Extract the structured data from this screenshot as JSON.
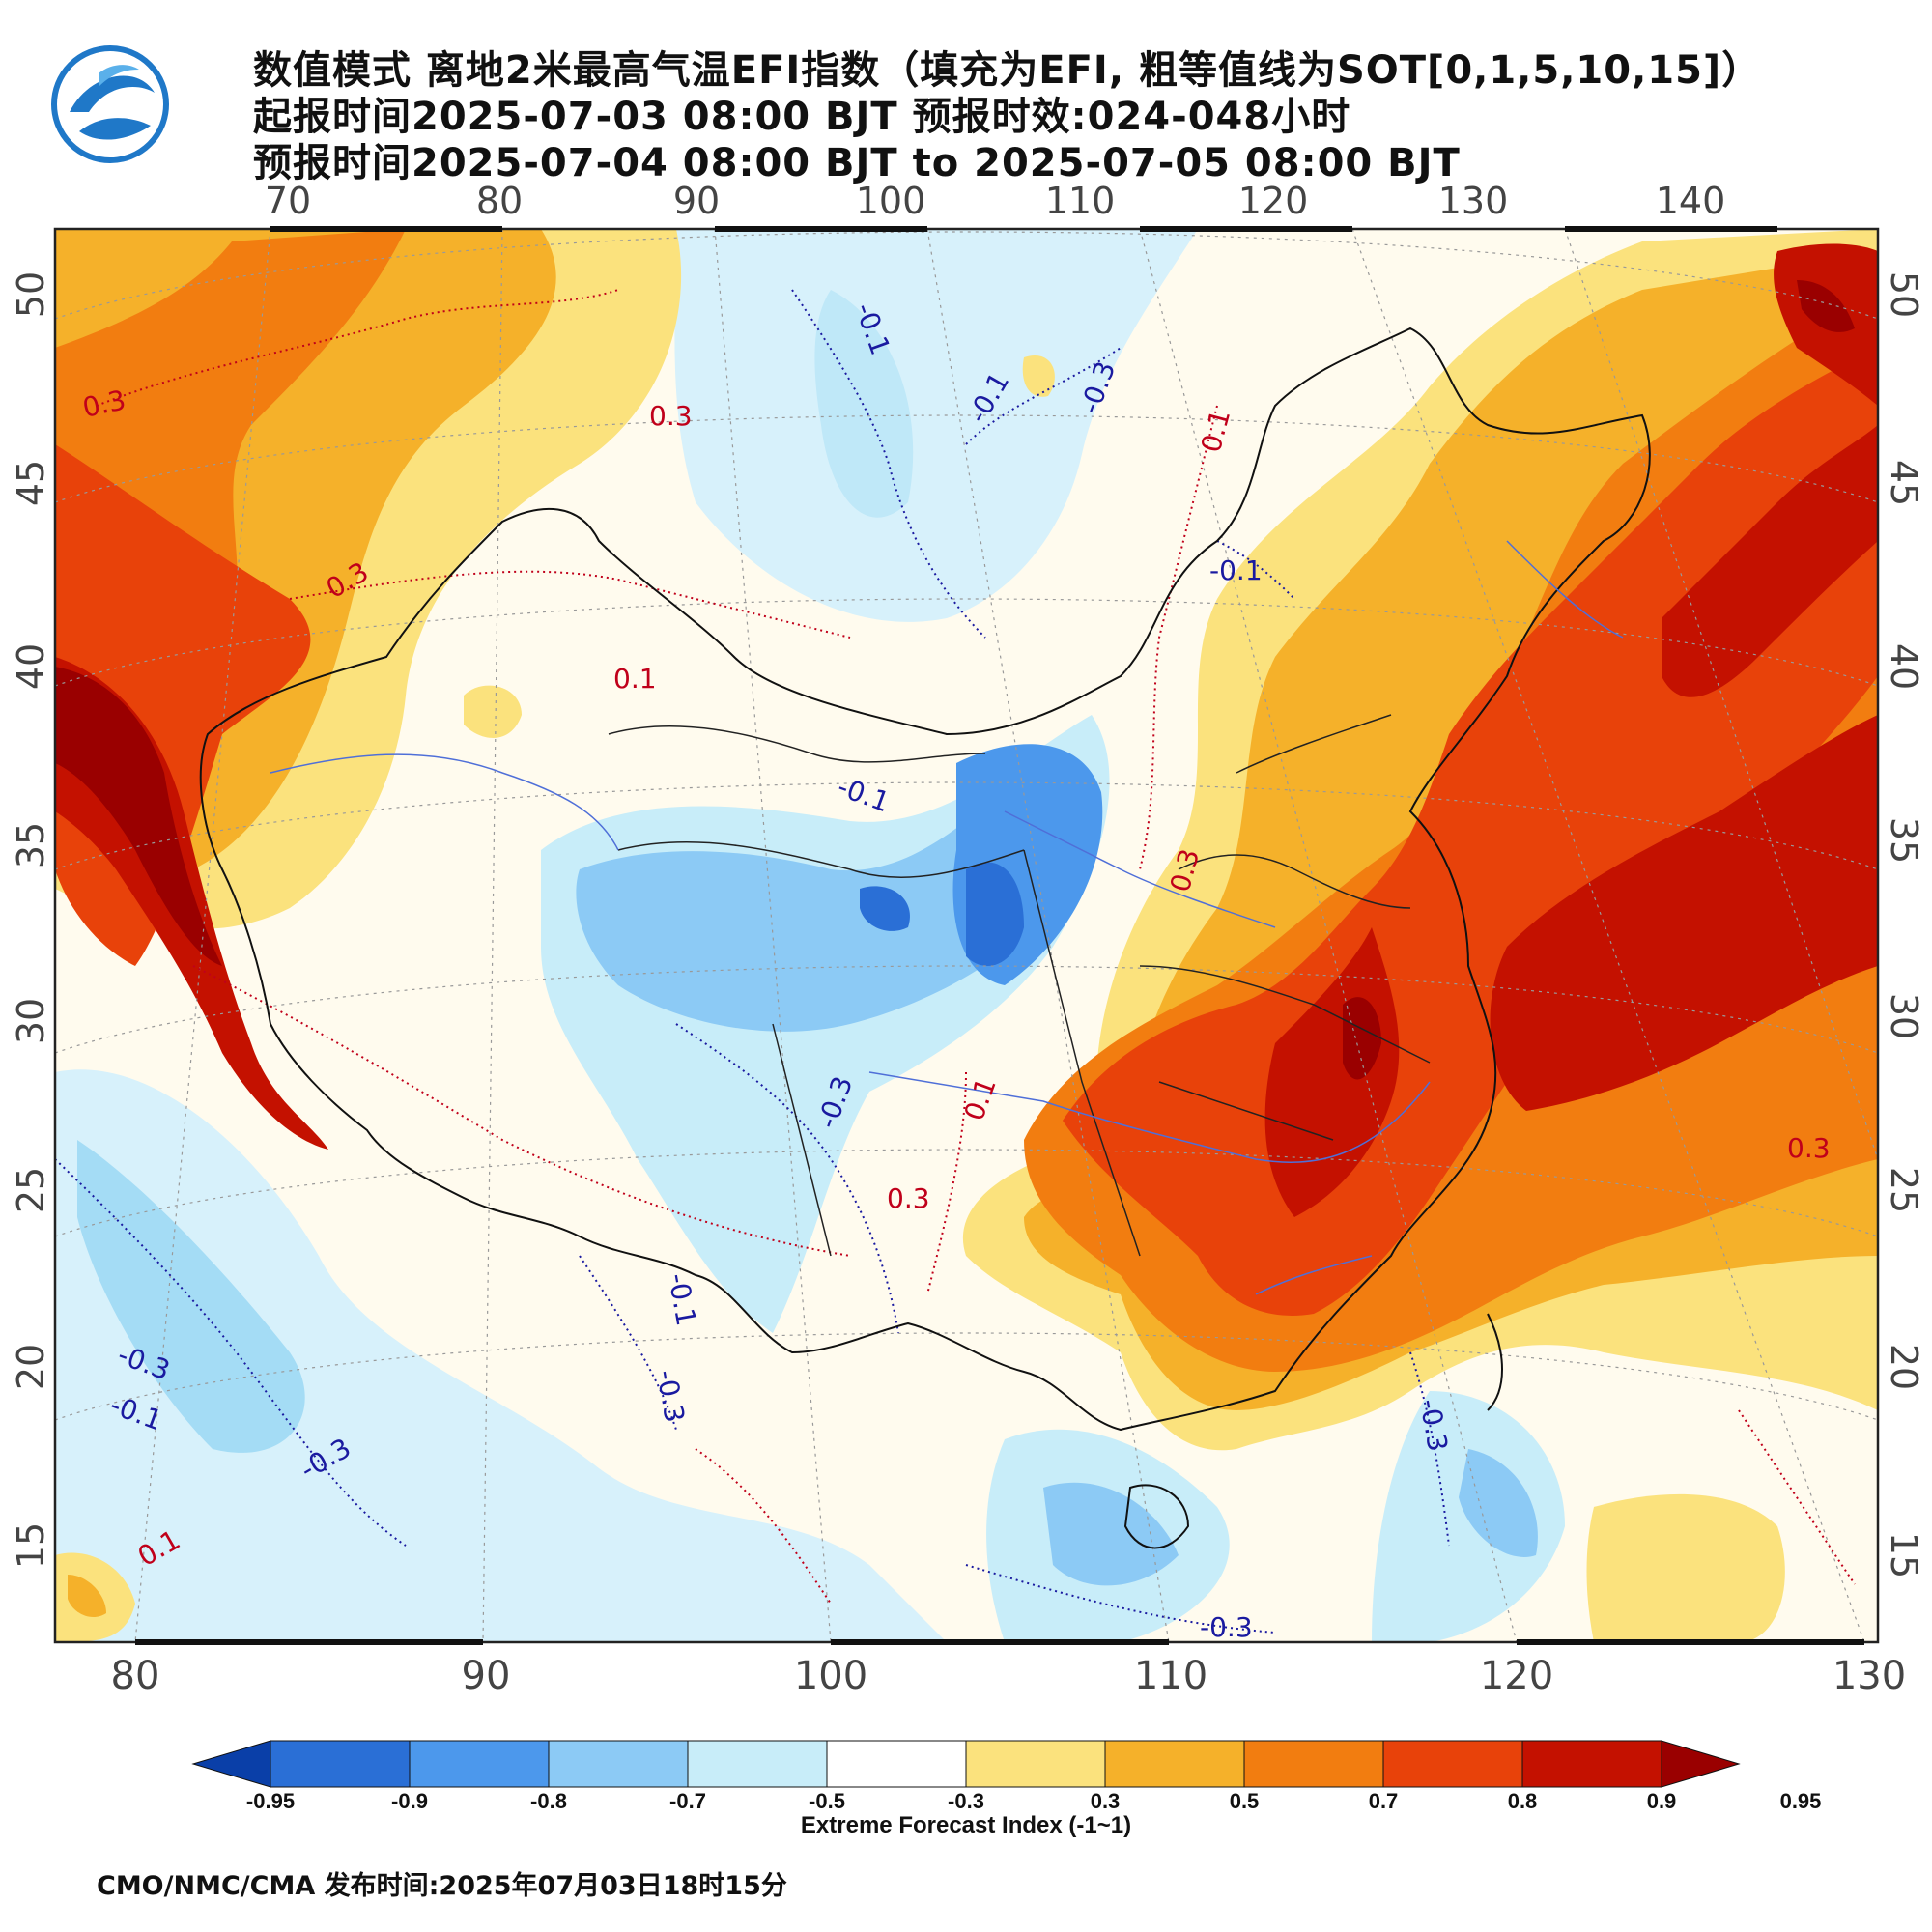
{
  "header": {
    "line1": "数值模式 离地2米最高气温EFI指数（填充为EFI, 粗等值线为SOT[0,1,5,10,15]）",
    "line2": "起报时间2025-07-03 08:00 BJT 预报时效:024-048小时",
    "line3": "预报时间2025-07-04 08:00 BJT to 2025-07-05 08:00 BJT"
  },
  "map": {
    "top_lon_labels": [
      "70",
      "80",
      "90",
      "100",
      "110",
      "120",
      "130",
      "140"
    ],
    "bottom_lon_labels": [
      "80",
      "90",
      "100",
      "110",
      "120",
      "130"
    ],
    "left_lat_labels": [
      "50",
      "45",
      "40",
      "35",
      "30",
      "25",
      "20",
      "15"
    ],
    "right_lat_labels": [
      "50",
      "45",
      "40",
      "35",
      "30",
      "25",
      "20",
      "15"
    ],
    "contour_labels": [
      {
        "text": "0.3",
        "color": "#c0001a"
      },
      {
        "text": "0.3",
        "color": "#c0001a"
      },
      {
        "text": "0.3",
        "color": "#c0001a"
      },
      {
        "text": "0.1",
        "color": "#c0001a"
      },
      {
        "text": "0.1",
        "color": "#c0001a"
      },
      {
        "text": "0.3",
        "color": "#c0001a"
      },
      {
        "text": "0.3",
        "color": "#c0001a"
      },
      {
        "text": "0.1",
        "color": "#c0001a"
      },
      {
        "text": "0.3",
        "color": "#c0001a"
      },
      {
        "text": "0.1",
        "color": "#c0001a"
      },
      {
        "text": "-0.1",
        "color": "#1a1aa0"
      },
      {
        "text": "-0.1",
        "color": "#1a1aa0"
      },
      {
        "text": "-0.3",
        "color": "#1a1aa0"
      },
      {
        "text": "-0.1",
        "color": "#1a1aa0"
      },
      {
        "text": "-0.1",
        "color": "#1a1aa0"
      },
      {
        "text": "-0.3",
        "color": "#1a1aa0"
      },
      {
        "text": "-0.1",
        "color": "#1a1aa0"
      },
      {
        "text": "-0.3",
        "color": "#1a1aa0"
      },
      {
        "text": "-0.3",
        "color": "#1a1aa0"
      },
      {
        "text": "-0.1",
        "color": "#1a1aa0"
      },
      {
        "text": "-0.3",
        "color": "#1a1aa0"
      },
      {
        "text": "-0.3",
        "color": "#1a1aa0"
      },
      {
        "text": "-0.3",
        "color": "#1a1aa0"
      }
    ]
  },
  "colorbar": {
    "colors": [
      "#0a3fa8",
      "#2a6fd6",
      "#4c98ec",
      "#8ccaf5",
      "#c8edf9",
      "#ffffff",
      "#fbe27d",
      "#f5b12a",
      "#f27d10",
      "#e8420a",
      "#c41100",
      "#9a0000"
    ],
    "tick_labels": [
      "-0.95",
      "-0.9",
      "-0.8",
      "-0.7",
      "-0.5",
      "-0.3",
      "0.3",
      "0.5",
      "0.7",
      "0.8",
      "0.9",
      "0.95"
    ],
    "label": "Extreme Forecast Index (-1~1)"
  },
  "footer": {
    "text": "CMO/NMC/CMA 发布时间:2025年07月03日18时15分"
  }
}
